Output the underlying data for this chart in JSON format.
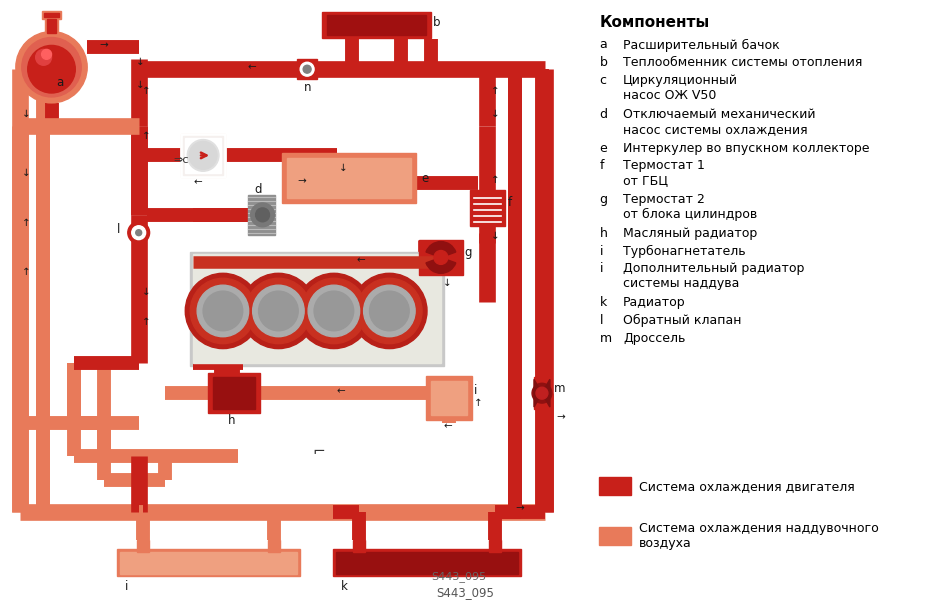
{
  "bg_color": "#ffffff",
  "C_MAIN": "#C8201A",
  "C_LIGHT": "#E87A5A",
  "C_VLIGHT": "#EFA080",
  "components_title": "Компоненты",
  "legend_items": [
    [
      "a",
      "Расширительный бачок"
    ],
    [
      "b",
      "Теплообменник системы отопления"
    ],
    [
      "c",
      "Циркуляционный\nнасос ОЖ V50"
    ],
    [
      "d",
      "Отключаемый механический\nнасос системы охлаждения"
    ],
    [
      "e",
      "Интеркулер во впускном коллекторе"
    ],
    [
      "f",
      "Термостат 1\nот ГБЦ"
    ],
    [
      "g",
      "Термостат 2\nот блока цилиндров"
    ],
    [
      "h",
      "Масляный радиатор"
    ],
    [
      "i",
      "Турбонагнетатель"
    ],
    [
      "i",
      "Дополнительный радиатор\nсистемы наддува"
    ],
    [
      "k",
      "Радиатор"
    ],
    [
      "l",
      "Обратный клапан"
    ],
    [
      "m",
      "Дроссель"
    ]
  ],
  "legend_colors": [
    [
      "#C8201A",
      "Система охлаждения двигателя"
    ],
    [
      "#E87A5A",
      "Система охлаждения наддувочного\nвоздуха"
    ]
  ],
  "watermark": "S443_095"
}
